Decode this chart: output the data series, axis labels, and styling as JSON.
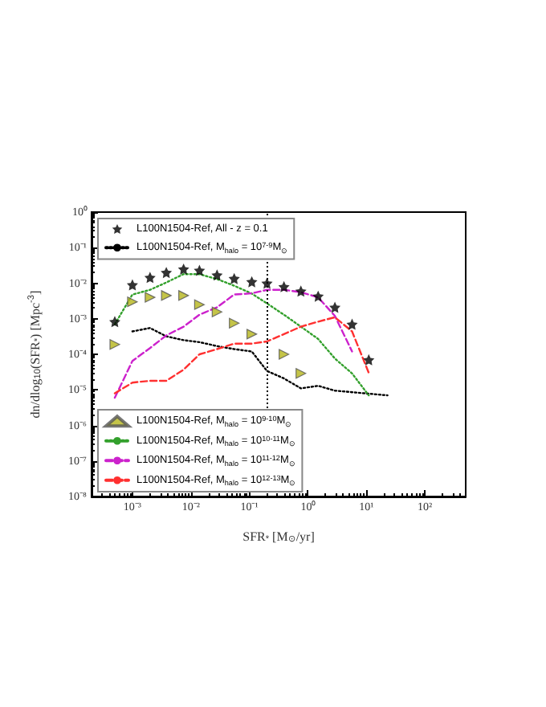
{
  "chart_data": {
    "type": "line",
    "xlabel": "SFR$_{*}$ [M$_{⊙}$/yr]",
    "ylabel": "dn/dlog$_{10}$(SFR$_{*}$) [Mpc$^{-3}$]",
    "log": "xy",
    "xlim": [
      0.0002,
      500
    ],
    "ylim": [
      1e-08,
      1
    ],
    "xticks": [
      {
        "value": 0.001,
        "label": "10⁻³"
      },
      {
        "value": 0.01,
        "label": "10⁻²"
      },
      {
        "value": 0.1,
        "label": "10⁻¹"
      },
      {
        "value": 1,
        "label": "10⁰"
      },
      {
        "value": 10,
        "label": "10¹"
      },
      {
        "value": 100,
        "label": "10²"
      }
    ],
    "yticks": [
      {
        "value": 1e-08,
        "label": "10⁻⁸"
      },
      {
        "value": 1e-07,
        "label": "10⁻⁷"
      },
      {
        "value": 1e-06,
        "label": "10⁻⁶"
      },
      {
        "value": 1e-05,
        "label": "10⁻⁵"
      },
      {
        "value": 0.0001,
        "label": "10⁻⁴"
      },
      {
        "value": 0.001,
        "label": "10⁻³"
      },
      {
        "value": 0.01,
        "label": "10⁻²"
      },
      {
        "value": 0.1,
        "label": "10⁻¹"
      },
      {
        "value": 1,
        "label": "10⁰"
      }
    ],
    "legend": "left",
    "grid": false,
    "ref_lines": [
      {
        "axis": "x",
        "value": 0.2,
        "line_style": "dotted",
        "color": "#000000"
      }
    ],
    "series": [
      {
        "name": "L100N1504-Ref, All - z = 0.1",
        "type": "scatter",
        "marker": "star",
        "color": "#000000",
        "x": [
          0.0005,
          0.001,
          0.002,
          0.0038,
          0.0075,
          0.014,
          0.028,
          0.055,
          0.11,
          0.2,
          0.39,
          0.76,
          1.5,
          2.9,
          5.7,
          11
        ],
        "values": [
          0.00083,
          0.009,
          0.0145,
          0.02,
          0.025,
          0.023,
          0.017,
          0.0135,
          0.011,
          0.01,
          0.008,
          0.006,
          0.0043,
          0.0021,
          0.0007,
          7e-05
        ]
      },
      {
        "name": "L100N1504-Ref, M$_{halo}$ = 10$^{7-9}$M$_{⊙}$",
        "line_style": "dotted",
        "marker": "none",
        "color": "#000000",
        "x": [
          0.001,
          0.002,
          0.0038,
          0.0075,
          0.014,
          0.028,
          0.055,
          0.11,
          0.2,
          0.39,
          0.76,
          1.5,
          2.9,
          23
        ],
        "values": [
          0.00044,
          0.00055,
          0.00032,
          0.00025,
          0.00022,
          0.00017,
          0.00014,
          0.00012,
          3.4e-05,
          2.1e-05,
          1.1e-05,
          1.3e-05,
          9.5e-06,
          7e-06
        ]
      },
      {
        "name": "L100N1504-Ref, M$_{halo}$ = 10$^{9-10}$M$_{⊙}$",
        "type": "scatter",
        "marker": "triangle",
        "color": "#b5b51a",
        "x": [
          0.0005,
          0.001,
          0.002,
          0.0038,
          0.0075,
          0.014,
          0.028,
          0.055,
          0.11,
          0.39,
          0.76
        ],
        "values": [
          0.00019,
          0.003,
          0.004,
          0.0045,
          0.0045,
          0.0025,
          0.00155,
          0.00075,
          0.00037,
          0.0001,
          2.9e-05
        ]
      },
      {
        "name": "L100N1504-Ref, M$_{halo}$ = 10$^{10-11}$M$_{⊙}$",
        "line_style": "dotted",
        "marker": "none",
        "color": "#33a02c",
        "x": [
          0.0005,
          0.001,
          0.002,
          0.0038,
          0.0075,
          0.014,
          0.028,
          0.055,
          0.11,
          0.2,
          0.39,
          0.76,
          1.5,
          2.9,
          5.7,
          11
        ],
        "values": [
          0.0007,
          0.0048,
          0.0065,
          0.0105,
          0.018,
          0.018,
          0.013,
          0.0085,
          0.0051,
          0.0027,
          0.0013,
          0.0006,
          0.00027,
          7.6e-05,
          2.9e-05,
          7e-06
        ]
      },
      {
        "name": "L100N1504-Ref, M$_{halo}$ = 10$^{11-12}$M$_{⊙}$",
        "line_style": "dashed",
        "marker": "none",
        "color": "#cc22cc",
        "x": [
          0.0005,
          0.001,
          0.002,
          0.0038,
          0.0075,
          0.014,
          0.028,
          0.055,
          0.11,
          0.2,
          0.39,
          0.76,
          1.5,
          2.9,
          5.7
        ],
        "values": [
          6e-06,
          6.5e-05,
          0.00015,
          0.00034,
          0.0006,
          0.0013,
          0.0021,
          0.0048,
          0.0052,
          0.0065,
          0.0065,
          0.0056,
          0.004,
          0.0012,
          0.00012
        ]
      },
      {
        "name": "L100N1504-Ref, M$_{halo}$ = 10$^{12-13}$M$_{⊙}$",
        "line_style": "dashed",
        "marker": "none",
        "color": "#ff3030",
        "x": [
          0.0005,
          0.001,
          0.002,
          0.0038,
          0.0075,
          0.014,
          0.028,
          0.055,
          0.11,
          0.2,
          0.39,
          0.76,
          1.5,
          2.9,
          5.7,
          11
        ],
        "values": [
          8e-06,
          1.6e-05,
          1.8e-05,
          1.8e-05,
          3.7e-05,
          0.0001,
          0.00014,
          0.0002,
          0.0002,
          0.00023,
          0.00037,
          0.0006,
          0.00083,
          0.0011,
          0.00044,
          3e-05
        ]
      }
    ]
  }
}
